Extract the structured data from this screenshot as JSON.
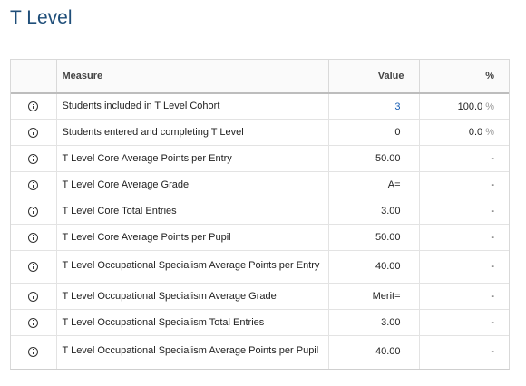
{
  "page": {
    "title": "T Level"
  },
  "table": {
    "headers": {
      "measure": "Measure",
      "value": "Value",
      "percent": "%"
    },
    "rows": [
      {
        "measure": "Students included in T Level Cohort",
        "value": "3",
        "value_is_link": true,
        "percent": "100.0",
        "percent_unit": "%"
      },
      {
        "measure": "Students entered and completing T Level",
        "value": "0",
        "value_is_link": false,
        "percent": "0.0",
        "percent_unit": "%"
      },
      {
        "measure": "T Level Core Average Points per Entry",
        "value": "50.00",
        "value_is_link": false,
        "percent": "-",
        "percent_unit": ""
      },
      {
        "measure": "T Level Core Average Grade",
        "value": "A=",
        "value_is_link": false,
        "percent": "-",
        "percent_unit": ""
      },
      {
        "measure": "T Level Core Total Entries",
        "value": "3.00",
        "value_is_link": false,
        "percent": "-",
        "percent_unit": ""
      },
      {
        "measure": "T Level Core Average Points per Pupil",
        "value": "50.00",
        "value_is_link": false,
        "percent": "-",
        "percent_unit": ""
      },
      {
        "measure": "T Level Occupational Specialism Average Points per Entry",
        "value": "40.00",
        "value_is_link": false,
        "percent": "-",
        "percent_unit": ""
      },
      {
        "measure": "T Level Occupational Specialism Average Grade",
        "value": "Merit=",
        "value_is_link": false,
        "percent": "-",
        "percent_unit": ""
      },
      {
        "measure": "T Level Occupational Specialism Total Entries",
        "value": "3.00",
        "value_is_link": false,
        "percent": "-",
        "percent_unit": ""
      },
      {
        "measure": "T Level Occupational Specialism Average Points per Pupil",
        "value": "40.00",
        "value_is_link": false,
        "percent": "-",
        "percent_unit": ""
      }
    ],
    "row_icon": "info-icon"
  }
}
